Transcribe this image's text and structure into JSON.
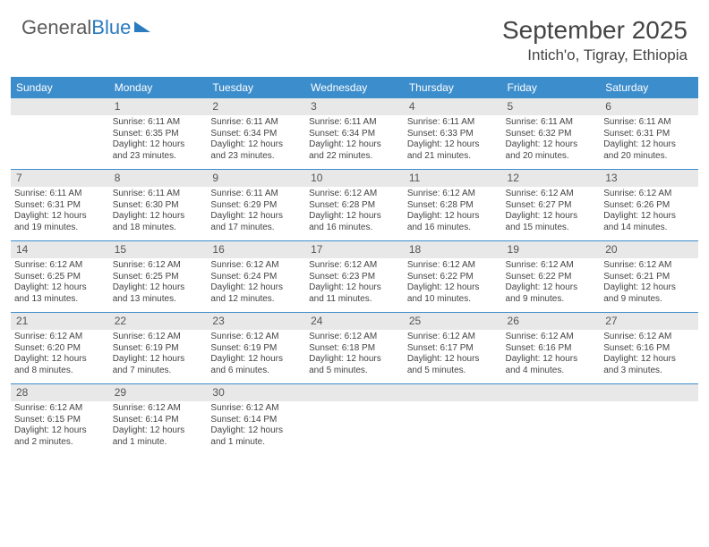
{
  "brand": {
    "part1": "General",
    "part2": "Blue"
  },
  "title": "September 2025",
  "location": "Intich'o, Tigray, Ethiopia",
  "colors": {
    "header_bg": "#3c8dcc",
    "header_text": "#ffffff",
    "daynum_bg": "#e8e8e8",
    "border": "#3c8dcc",
    "body_text": "#444444"
  },
  "typography": {
    "title_fontsize": 28,
    "location_fontsize": 17,
    "dayhead_fontsize": 12,
    "cell_fontsize": 10
  },
  "day_headers": [
    "Sunday",
    "Monday",
    "Tuesday",
    "Wednesday",
    "Thursday",
    "Friday",
    "Saturday"
  ],
  "weeks": [
    [
      null,
      {
        "n": "1",
        "sr": "Sunrise: 6:11 AM",
        "ss": "Sunset: 6:35 PM",
        "d1": "Daylight: 12 hours",
        "d2": "and 23 minutes."
      },
      {
        "n": "2",
        "sr": "Sunrise: 6:11 AM",
        "ss": "Sunset: 6:34 PM",
        "d1": "Daylight: 12 hours",
        "d2": "and 23 minutes."
      },
      {
        "n": "3",
        "sr": "Sunrise: 6:11 AM",
        "ss": "Sunset: 6:34 PM",
        "d1": "Daylight: 12 hours",
        "d2": "and 22 minutes."
      },
      {
        "n": "4",
        "sr": "Sunrise: 6:11 AM",
        "ss": "Sunset: 6:33 PM",
        "d1": "Daylight: 12 hours",
        "d2": "and 21 minutes."
      },
      {
        "n": "5",
        "sr": "Sunrise: 6:11 AM",
        "ss": "Sunset: 6:32 PM",
        "d1": "Daylight: 12 hours",
        "d2": "and 20 minutes."
      },
      {
        "n": "6",
        "sr": "Sunrise: 6:11 AM",
        "ss": "Sunset: 6:31 PM",
        "d1": "Daylight: 12 hours",
        "d2": "and 20 minutes."
      }
    ],
    [
      {
        "n": "7",
        "sr": "Sunrise: 6:11 AM",
        "ss": "Sunset: 6:31 PM",
        "d1": "Daylight: 12 hours",
        "d2": "and 19 minutes."
      },
      {
        "n": "8",
        "sr": "Sunrise: 6:11 AM",
        "ss": "Sunset: 6:30 PM",
        "d1": "Daylight: 12 hours",
        "d2": "and 18 minutes."
      },
      {
        "n": "9",
        "sr": "Sunrise: 6:11 AM",
        "ss": "Sunset: 6:29 PM",
        "d1": "Daylight: 12 hours",
        "d2": "and 17 minutes."
      },
      {
        "n": "10",
        "sr": "Sunrise: 6:12 AM",
        "ss": "Sunset: 6:28 PM",
        "d1": "Daylight: 12 hours",
        "d2": "and 16 minutes."
      },
      {
        "n": "11",
        "sr": "Sunrise: 6:12 AM",
        "ss": "Sunset: 6:28 PM",
        "d1": "Daylight: 12 hours",
        "d2": "and 16 minutes."
      },
      {
        "n": "12",
        "sr": "Sunrise: 6:12 AM",
        "ss": "Sunset: 6:27 PM",
        "d1": "Daylight: 12 hours",
        "d2": "and 15 minutes."
      },
      {
        "n": "13",
        "sr": "Sunrise: 6:12 AM",
        "ss": "Sunset: 6:26 PM",
        "d1": "Daylight: 12 hours",
        "d2": "and 14 minutes."
      }
    ],
    [
      {
        "n": "14",
        "sr": "Sunrise: 6:12 AM",
        "ss": "Sunset: 6:25 PM",
        "d1": "Daylight: 12 hours",
        "d2": "and 13 minutes."
      },
      {
        "n": "15",
        "sr": "Sunrise: 6:12 AM",
        "ss": "Sunset: 6:25 PM",
        "d1": "Daylight: 12 hours",
        "d2": "and 13 minutes."
      },
      {
        "n": "16",
        "sr": "Sunrise: 6:12 AM",
        "ss": "Sunset: 6:24 PM",
        "d1": "Daylight: 12 hours",
        "d2": "and 12 minutes."
      },
      {
        "n": "17",
        "sr": "Sunrise: 6:12 AM",
        "ss": "Sunset: 6:23 PM",
        "d1": "Daylight: 12 hours",
        "d2": "and 11 minutes."
      },
      {
        "n": "18",
        "sr": "Sunrise: 6:12 AM",
        "ss": "Sunset: 6:22 PM",
        "d1": "Daylight: 12 hours",
        "d2": "and 10 minutes."
      },
      {
        "n": "19",
        "sr": "Sunrise: 6:12 AM",
        "ss": "Sunset: 6:22 PM",
        "d1": "Daylight: 12 hours",
        "d2": "and 9 minutes."
      },
      {
        "n": "20",
        "sr": "Sunrise: 6:12 AM",
        "ss": "Sunset: 6:21 PM",
        "d1": "Daylight: 12 hours",
        "d2": "and 9 minutes."
      }
    ],
    [
      {
        "n": "21",
        "sr": "Sunrise: 6:12 AM",
        "ss": "Sunset: 6:20 PM",
        "d1": "Daylight: 12 hours",
        "d2": "and 8 minutes."
      },
      {
        "n": "22",
        "sr": "Sunrise: 6:12 AM",
        "ss": "Sunset: 6:19 PM",
        "d1": "Daylight: 12 hours",
        "d2": "and 7 minutes."
      },
      {
        "n": "23",
        "sr": "Sunrise: 6:12 AM",
        "ss": "Sunset: 6:19 PM",
        "d1": "Daylight: 12 hours",
        "d2": "and 6 minutes."
      },
      {
        "n": "24",
        "sr": "Sunrise: 6:12 AM",
        "ss": "Sunset: 6:18 PM",
        "d1": "Daylight: 12 hours",
        "d2": "and 5 minutes."
      },
      {
        "n": "25",
        "sr": "Sunrise: 6:12 AM",
        "ss": "Sunset: 6:17 PM",
        "d1": "Daylight: 12 hours",
        "d2": "and 5 minutes."
      },
      {
        "n": "26",
        "sr": "Sunrise: 6:12 AM",
        "ss": "Sunset: 6:16 PM",
        "d1": "Daylight: 12 hours",
        "d2": "and 4 minutes."
      },
      {
        "n": "27",
        "sr": "Sunrise: 6:12 AM",
        "ss": "Sunset: 6:16 PM",
        "d1": "Daylight: 12 hours",
        "d2": "and 3 minutes."
      }
    ],
    [
      {
        "n": "28",
        "sr": "Sunrise: 6:12 AM",
        "ss": "Sunset: 6:15 PM",
        "d1": "Daylight: 12 hours",
        "d2": "and 2 minutes."
      },
      {
        "n": "29",
        "sr": "Sunrise: 6:12 AM",
        "ss": "Sunset: 6:14 PM",
        "d1": "Daylight: 12 hours",
        "d2": "and 1 minute."
      },
      {
        "n": "30",
        "sr": "Sunrise: 6:12 AM",
        "ss": "Sunset: 6:14 PM",
        "d1": "Daylight: 12 hours",
        "d2": "and 1 minute."
      },
      null,
      null,
      null,
      null
    ]
  ]
}
